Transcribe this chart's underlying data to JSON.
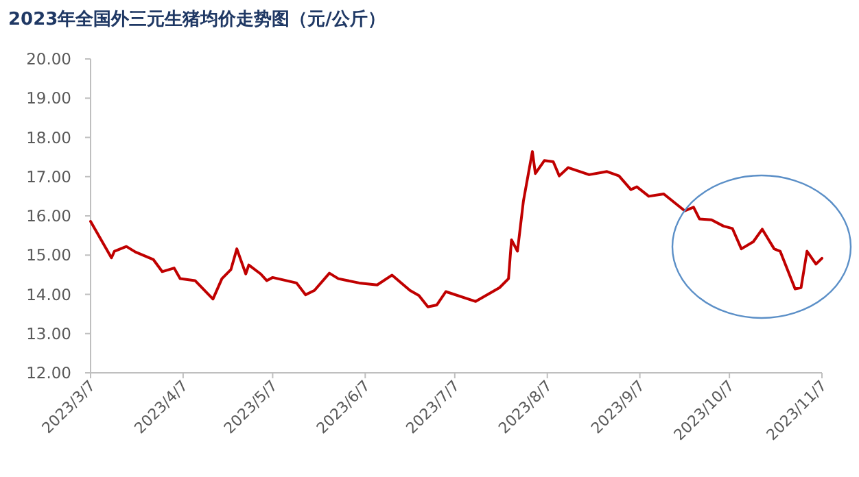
{
  "chart_data": {
    "type": "line",
    "title": "2023年全国外三元生猪均价走势图（元/公斤）",
    "x": [
      "2023-03-07",
      "2023-03-14",
      "2023-03-15",
      "2023-03-19",
      "2023-03-22",
      "2023-03-28",
      "2023-03-31",
      "2023-04-04",
      "2023-04-06",
      "2023-04-11",
      "2023-04-17",
      "2023-04-20",
      "2023-04-23",
      "2023-04-25",
      "2023-04-28",
      "2023-04-29",
      "2023-05-03",
      "2023-05-05",
      "2023-05-07",
      "2023-05-15",
      "2023-05-18",
      "2023-05-21",
      "2023-05-26",
      "2023-05-29",
      "2023-06-05",
      "2023-06-11",
      "2023-06-16",
      "2023-06-22",
      "2023-06-25",
      "2023-06-28",
      "2023-07-01",
      "2023-07-04",
      "2023-07-14",
      "2023-07-22",
      "2023-07-25",
      "2023-07-26",
      "2023-07-28",
      "2023-07-30",
      "2023-08-02",
      "2023-08-03",
      "2023-08-06",
      "2023-08-09",
      "2023-08-11",
      "2023-08-14",
      "2023-08-21",
      "2023-08-27",
      "2023-08-31",
      "2023-09-04",
      "2023-09-06",
      "2023-09-10",
      "2023-09-15",
      "2023-09-22",
      "2023-09-25",
      "2023-09-27",
      "2023-10-01",
      "2023-10-05",
      "2023-10-08",
      "2023-10-11",
      "2023-10-15",
      "2023-10-18",
      "2023-10-22",
      "2023-10-24",
      "2023-10-29",
      "2023-10-31",
      "2023-11-02",
      "2023-11-05",
      "2023-11-07"
    ],
    "series": [
      {
        "color": "#c00000",
        "values": [
          15.86,
          14.93,
          15.1,
          15.22,
          15.08,
          14.89,
          14.58,
          14.67,
          14.4,
          14.35,
          13.88,
          14.4,
          14.63,
          15.16,
          14.52,
          14.75,
          14.52,
          14.35,
          14.43,
          14.29,
          13.99,
          14.1,
          14.54,
          14.4,
          14.29,
          14.24,
          14.49,
          14.1,
          13.97,
          13.68,
          13.73,
          14.07,
          13.82,
          14.17,
          14.4,
          15.39,
          15.1,
          16.38,
          17.64,
          17.08,
          17.41,
          17.38,
          17.02,
          17.23,
          17.05,
          17.13,
          17.02,
          16.67,
          16.74,
          16.5,
          16.56,
          16.13,
          16.22,
          15.92,
          15.9,
          15.74,
          15.68,
          15.16,
          15.34,
          15.66,
          15.16,
          15.1,
          14.14,
          14.17,
          15.1,
          14.77,
          14.92
        ]
      }
    ],
    "xlim": [
      "2023-03-07",
      "2023-11-07"
    ],
    "xticks": [
      {
        "value": "2023-03-07",
        "label": "2023/3/7"
      },
      {
        "value": "2023-04-07",
        "label": "2023/4/7"
      },
      {
        "value": "2023-05-07",
        "label": "2023/5/7"
      },
      {
        "value": "2023-06-07",
        "label": "2023/6/7"
      },
      {
        "value": "2023-07-07",
        "label": "2023/7/7"
      },
      {
        "value": "2023-08-07",
        "label": "2023/8/7"
      },
      {
        "value": "2023-09-07",
        "label": "2023/9/7"
      },
      {
        "value": "2023-10-07",
        "label": "2023/10/7"
      },
      {
        "value": "2023-11-07",
        "label": "2023/11/7"
      }
    ],
    "ylim": [
      12,
      20
    ],
    "yticks": [
      {
        "value": 12,
        "label": "12.00"
      },
      {
        "value": 13,
        "label": "13.00"
      },
      {
        "value": 14,
        "label": "14.00"
      },
      {
        "value": 15,
        "label": "15.00"
      },
      {
        "value": 16,
        "label": "16.00"
      },
      {
        "value": 17,
        "label": "17.00"
      },
      {
        "value": 18,
        "label": "18.00"
      },
      {
        "value": 19,
        "label": "19.00"
      },
      {
        "value": 20,
        "label": "20.00"
      }
    ],
    "grid": false,
    "marker": "none",
    "line_style": "solid"
  }
}
